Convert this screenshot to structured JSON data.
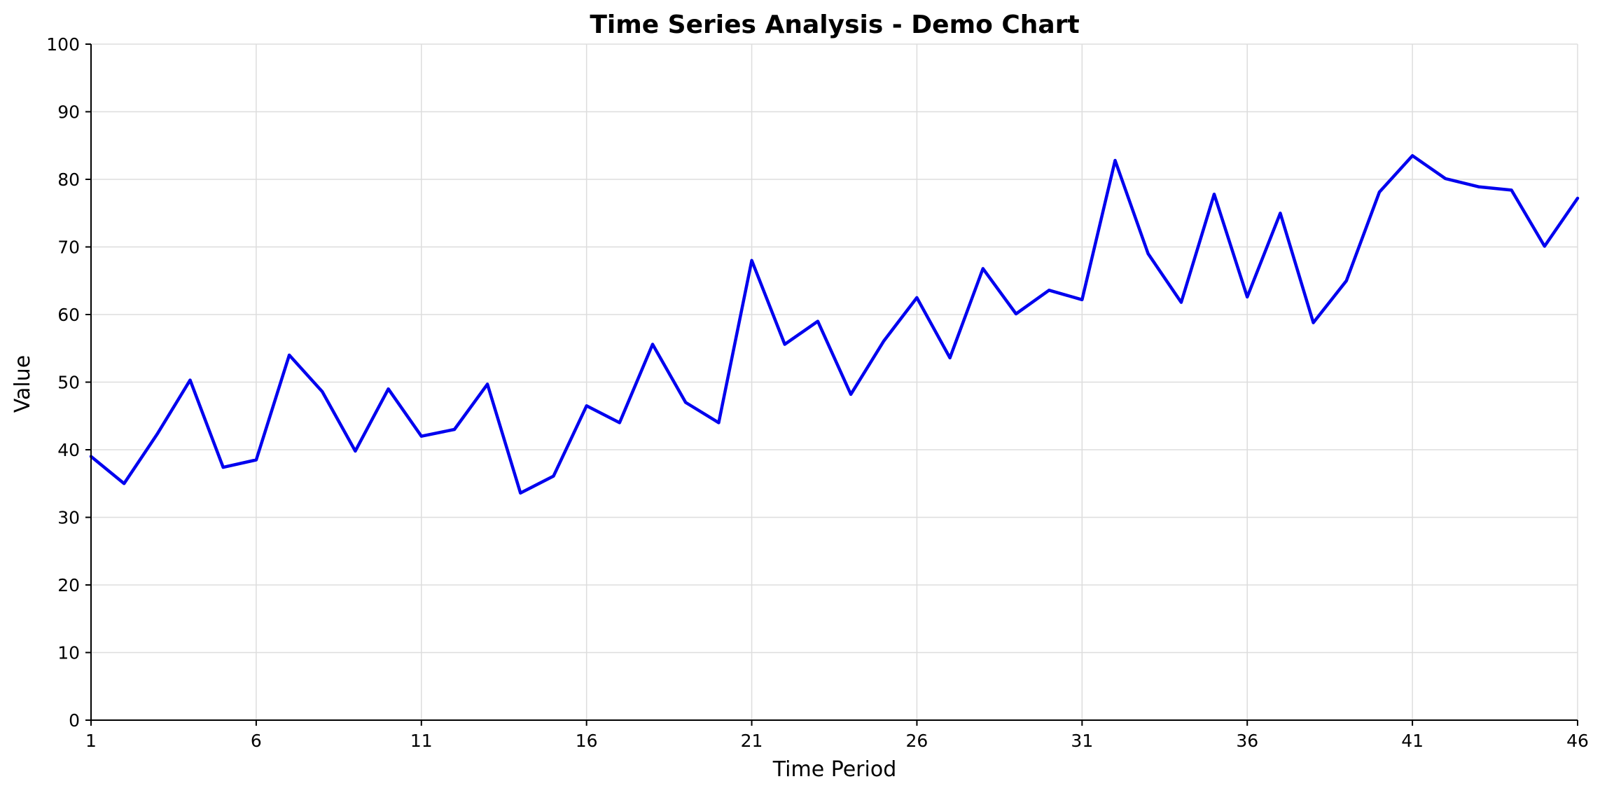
{
  "chart_data": {
    "type": "line",
    "title": "Time Series Analysis - Demo Chart",
    "xlabel": "Time Period",
    "ylabel": "Value",
    "xlim": [
      1,
      46
    ],
    "ylim": [
      0,
      100
    ],
    "xticks": [
      1,
      6,
      11,
      16,
      21,
      26,
      31,
      36,
      41,
      46
    ],
    "yticks": [
      0,
      10,
      20,
      30,
      40,
      50,
      60,
      70,
      80,
      90,
      100
    ],
    "grid": true,
    "legend": "none",
    "x": [
      1,
      2,
      3,
      4,
      5,
      6,
      7,
      8,
      9,
      10,
      11,
      12,
      13,
      14,
      15,
      16,
      17,
      18,
      19,
      20,
      21,
      22,
      23,
      24,
      25,
      26,
      27,
      28,
      29,
      30,
      31,
      32,
      33,
      34,
      35,
      36,
      37,
      38,
      39,
      40,
      41,
      42,
      43,
      44,
      45,
      46
    ],
    "series": [
      {
        "color": "#0000ee",
        "values": [
          39.0,
          35.0,
          42.3,
          50.3,
          37.4,
          38.5,
          54.0,
          48.6,
          39.8,
          49.0,
          42.0,
          43.0,
          49.7,
          33.6,
          36.1,
          46.5,
          44.0,
          55.6,
          47.0,
          44.0,
          68.0,
          55.6,
          59.0,
          48.2,
          56.1,
          62.5,
          53.6,
          66.8,
          60.1,
          63.6,
          62.2,
          82.8,
          69.0,
          61.8,
          77.8,
          62.6,
          75.0,
          58.8,
          65.0,
          78.1,
          83.5,
          80.1,
          78.9,
          78.4,
          70.1,
          77.2
        ]
      }
    ]
  }
}
